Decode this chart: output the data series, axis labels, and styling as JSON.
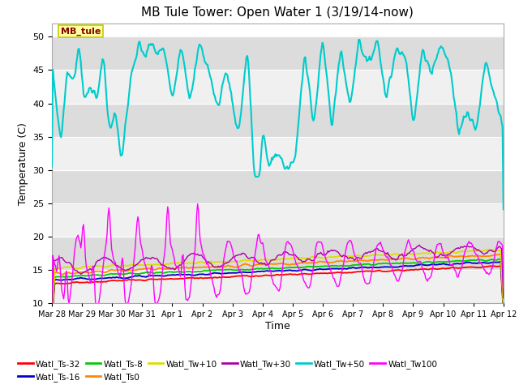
{
  "title": "MB Tule Tower: Open Water 1 (3/19/14-now)",
  "xlabel": "Time",
  "ylabel": "Temperature (C)",
  "ylim": [
    10,
    52
  ],
  "yticks": [
    10,
    15,
    20,
    25,
    30,
    35,
    40,
    45,
    50
  ],
  "bg_color": "#ffffff",
  "plot_bg_light": "#f0f0f0",
  "plot_bg_dark": "#dcdcdc",
  "legend_label": "MB_tule",
  "legend_label_color": "#8b0000",
  "legend_box_facecolor": "#ffffa0",
  "legend_box_edgecolor": "#c8c800",
  "series_colors": {
    "Watl_Ts-32": "#ff0000",
    "Watl_Ts-16": "#0000cc",
    "Watl_Ts-8": "#00cc00",
    "Watl_Ts0": "#ff8800",
    "Watl_Tw+10": "#dddd00",
    "Watl_Tw+30": "#aa00aa",
    "Watl_Tw+50": "#00cccc",
    "Watl_Tw100": "#ff00ff"
  },
  "tick_labels": [
    "Mar 28",
    "Mar 29",
    "Mar 30",
    "Mar 31",
    "Apr 1",
    "Apr 2",
    "Apr 3",
    "Apr 4",
    "Apr 5",
    "Apr 6",
    "Apr 7",
    "Apr 8",
    "Apr 9",
    "Apr 10",
    "Apr 11",
    "Apr 12"
  ],
  "num_points": 500
}
